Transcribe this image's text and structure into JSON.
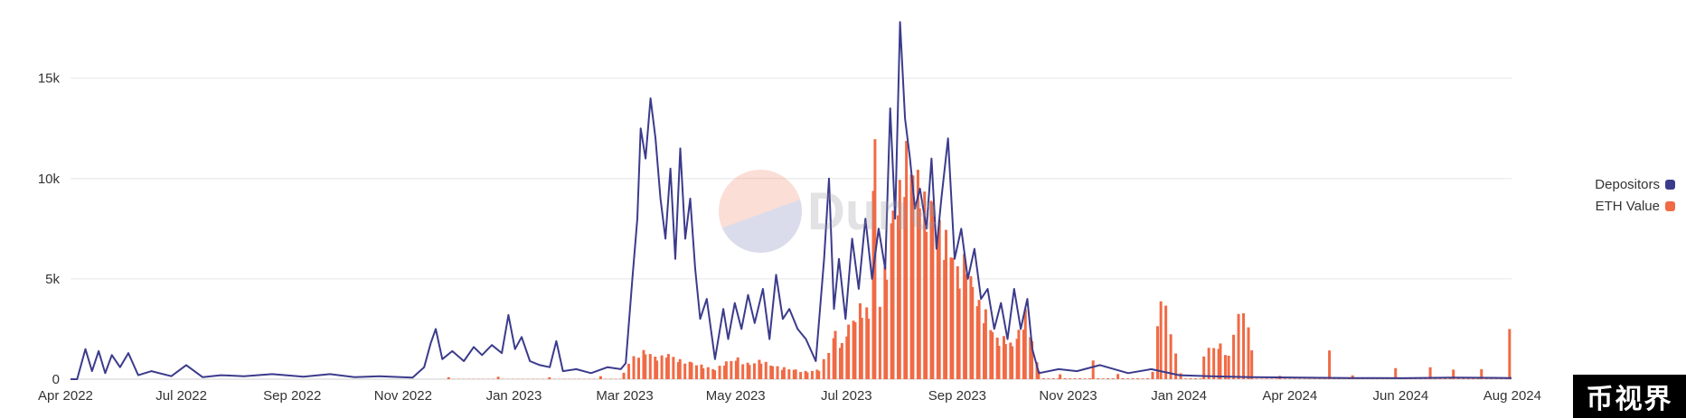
{
  "chart_data": {
    "type": "line",
    "title": "",
    "xlabel": "",
    "ylabel": "",
    "x_ticks": [
      "Apr 2022",
      "Jul 2022",
      "Sep 2022",
      "Nov 2022",
      "Jan 2023",
      "Mar 2023",
      "May 2023",
      "Jul 2023",
      "Sep 2023",
      "Nov 2023",
      "Jan 2024",
      "Apr 2024",
      "Jun 2024",
      "Aug 2024"
    ],
    "y_ticks": [
      {
        "value": 0,
        "label": "0"
      },
      {
        "value": 5000,
        "label": "5k"
      },
      {
        "value": 10000,
        "label": "10k"
      },
      {
        "value": 15000,
        "label": "15k"
      }
    ],
    "ylim": [
      0,
      18000
    ],
    "xlim": [
      "2022-04-01",
      "2024-08-20"
    ],
    "grid": "horizontal",
    "legend_position": "right",
    "series": [
      {
        "name": "Depositors",
        "type": "line",
        "color": "#3b3b8c",
        "points": [
          [
            "2022-04-01",
            0
          ],
          [
            "2022-04-05",
            0
          ],
          [
            "2022-04-10",
            1500
          ],
          [
            "2022-04-14",
            400
          ],
          [
            "2022-04-18",
            1400
          ],
          [
            "2022-04-22",
            300
          ],
          [
            "2022-04-26",
            1200
          ],
          [
            "2022-05-01",
            600
          ],
          [
            "2022-05-06",
            1300
          ],
          [
            "2022-05-12",
            200
          ],
          [
            "2022-05-20",
            400
          ],
          [
            "2022-06-01",
            150
          ],
          [
            "2022-06-10",
            700
          ],
          [
            "2022-06-20",
            100
          ],
          [
            "2022-07-01",
            200
          ],
          [
            "2022-07-15",
            150
          ],
          [
            "2022-08-01",
            250
          ],
          [
            "2022-08-20",
            120
          ],
          [
            "2022-09-05",
            250
          ],
          [
            "2022-09-20",
            100
          ],
          [
            "2022-10-05",
            150
          ],
          [
            "2022-10-25",
            80
          ],
          [
            "2022-11-01",
            600
          ],
          [
            "2022-11-05",
            1800
          ],
          [
            "2022-11-08",
            2500
          ],
          [
            "2022-11-12",
            1000
          ],
          [
            "2022-11-18",
            1400
          ],
          [
            "2022-11-25",
            900
          ],
          [
            "2022-12-01",
            1600
          ],
          [
            "2022-12-06",
            1200
          ],
          [
            "2022-12-12",
            1700
          ],
          [
            "2022-12-18",
            1300
          ],
          [
            "2022-12-22",
            3200
          ],
          [
            "2022-12-26",
            1500
          ],
          [
            "2022-12-30",
            2100
          ],
          [
            "2023-01-04",
            900
          ],
          [
            "2023-01-10",
            700
          ],
          [
            "2023-01-16",
            600
          ],
          [
            "2023-01-20",
            1900
          ],
          [
            "2023-01-24",
            400
          ],
          [
            "2023-02-01",
            500
          ],
          [
            "2023-02-10",
            300
          ],
          [
            "2023-02-20",
            600
          ],
          [
            "2023-02-28",
            500
          ],
          [
            "2023-03-03",
            800
          ],
          [
            "2023-03-07",
            5000
          ],
          [
            "2023-03-10",
            8000
          ],
          [
            "2023-03-12",
            12500
          ],
          [
            "2023-03-15",
            11000
          ],
          [
            "2023-03-18",
            14000
          ],
          [
            "2023-03-21",
            12000
          ],
          [
            "2023-03-24",
            9000
          ],
          [
            "2023-03-27",
            7000
          ],
          [
            "2023-03-30",
            10500
          ],
          [
            "2023-04-02",
            6000
          ],
          [
            "2023-04-05",
            11500
          ],
          [
            "2023-04-08",
            7000
          ],
          [
            "2023-04-11",
            9000
          ],
          [
            "2023-04-14",
            5500
          ],
          [
            "2023-04-17",
            3000
          ],
          [
            "2023-04-21",
            4000
          ],
          [
            "2023-04-26",
            1000
          ],
          [
            "2023-05-01",
            3500
          ],
          [
            "2023-05-04",
            2000
          ],
          [
            "2023-05-08",
            3800
          ],
          [
            "2023-05-12",
            2500
          ],
          [
            "2023-05-16",
            4200
          ],
          [
            "2023-05-20",
            2800
          ],
          [
            "2023-05-25",
            4500
          ],
          [
            "2023-05-29",
            2000
          ],
          [
            "2023-06-02",
            5200
          ],
          [
            "2023-06-06",
            3000
          ],
          [
            "2023-06-10",
            3500
          ],
          [
            "2023-06-15",
            2500
          ],
          [
            "2023-06-20",
            2000
          ],
          [
            "2023-06-26",
            900
          ],
          [
            "2023-07-01",
            6000
          ],
          [
            "2023-07-04",
            10000
          ],
          [
            "2023-07-07",
            3500
          ],
          [
            "2023-07-10",
            6000
          ],
          [
            "2023-07-14",
            3000
          ],
          [
            "2023-07-18",
            7000
          ],
          [
            "2023-07-22",
            4500
          ],
          [
            "2023-07-26",
            8000
          ],
          [
            "2023-07-30",
            5000
          ],
          [
            "2023-08-03",
            7500
          ],
          [
            "2023-08-07",
            5500
          ],
          [
            "2023-08-10",
            13500
          ],
          [
            "2023-08-13",
            8000
          ],
          [
            "2023-08-16",
            17800
          ],
          [
            "2023-08-19",
            13000
          ],
          [
            "2023-08-22",
            11000
          ],
          [
            "2023-08-25",
            8500
          ],
          [
            "2023-08-28",
            9500
          ],
          [
            "2023-09-01",
            7500
          ],
          [
            "2023-09-04",
            11000
          ],
          [
            "2023-09-07",
            6500
          ],
          [
            "2023-09-10",
            9000
          ],
          [
            "2023-09-14",
            12000
          ],
          [
            "2023-09-18",
            6000
          ],
          [
            "2023-09-22",
            7500
          ],
          [
            "2023-09-26",
            5000
          ],
          [
            "2023-09-30",
            6500
          ],
          [
            "2023-10-04",
            4000
          ],
          [
            "2023-10-08",
            4500
          ],
          [
            "2023-10-12",
            2500
          ],
          [
            "2023-10-16",
            3800
          ],
          [
            "2023-10-20",
            2000
          ],
          [
            "2023-10-24",
            4500
          ],
          [
            "2023-10-28",
            2500
          ],
          [
            "2023-11-01",
            4000
          ],
          [
            "2023-11-04",
            1500
          ],
          [
            "2023-11-08",
            300
          ],
          [
            "2023-11-20",
            500
          ],
          [
            "2023-12-01",
            400
          ],
          [
            "2023-12-15",
            700
          ],
          [
            "2024-01-01",
            300
          ],
          [
            "2024-01-15",
            500
          ],
          [
            "2024-02-01",
            200
          ],
          [
            "2024-02-20",
            150
          ],
          [
            "2024-03-15",
            100
          ],
          [
            "2024-04-15",
            80
          ],
          [
            "2024-05-15",
            60
          ],
          [
            "2024-06-15",
            50
          ],
          [
            "2024-07-15",
            80
          ],
          [
            "2024-08-20",
            60
          ]
        ]
      },
      {
        "name": "ETH Value",
        "type": "bar",
        "color": "#f06a45",
        "points": [
          [
            "2022-10-20",
            0
          ],
          [
            "2022-11-15",
            100
          ],
          [
            "2022-12-15",
            150
          ],
          [
            "2023-01-15",
            100
          ],
          [
            "2023-02-15",
            150
          ],
          [
            "2023-03-01",
            400
          ],
          [
            "2023-03-07",
            1200
          ],
          [
            "2023-03-14",
            1500
          ],
          [
            "2023-03-21",
            1100
          ],
          [
            "2023-03-28",
            1300
          ],
          [
            "2023-04-04",
            1000
          ],
          [
            "2023-04-11",
            900
          ],
          [
            "2023-04-18",
            700
          ],
          [
            "2023-04-25",
            500
          ],
          [
            "2023-05-02",
            900
          ],
          [
            "2023-05-09",
            1100
          ],
          [
            "2023-05-16",
            800
          ],
          [
            "2023-05-23",
            1000
          ],
          [
            "2023-05-30",
            700
          ],
          [
            "2023-06-06",
            600
          ],
          [
            "2023-06-13",
            500
          ],
          [
            "2023-06-20",
            400
          ],
          [
            "2023-06-27",
            500
          ],
          [
            "2023-07-03",
            1500
          ],
          [
            "2023-07-07",
            2500
          ],
          [
            "2023-07-11",
            1800
          ],
          [
            "2023-07-15",
            2800
          ],
          [
            "2023-07-19",
            3200
          ],
          [
            "2023-07-23",
            4000
          ],
          [
            "2023-07-27",
            3500
          ],
          [
            "2023-07-31",
            12500
          ],
          [
            "2023-08-03",
            4500
          ],
          [
            "2023-08-07",
            6000
          ],
          [
            "2023-08-11",
            9000
          ],
          [
            "2023-08-15",
            10000
          ],
          [
            "2023-08-19",
            12000
          ],
          [
            "2023-08-23",
            11000
          ],
          [
            "2023-08-27",
            10500
          ],
          [
            "2023-08-31",
            9000
          ],
          [
            "2023-09-04",
            9500
          ],
          [
            "2023-09-08",
            8000
          ],
          [
            "2023-09-12",
            7500
          ],
          [
            "2023-09-16",
            6500
          ],
          [
            "2023-09-20",
            5500
          ],
          [
            "2023-09-24",
            6500
          ],
          [
            "2023-09-28",
            5000
          ],
          [
            "2023-10-02",
            4000
          ],
          [
            "2023-10-06",
            3500
          ],
          [
            "2023-10-10",
            2500
          ],
          [
            "2023-10-14",
            2000
          ],
          [
            "2023-10-18",
            2200
          ],
          [
            "2023-10-22",
            1800
          ],
          [
            "2023-10-26",
            2500
          ],
          [
            "2023-10-30",
            3500
          ],
          [
            "2023-11-03",
            2000
          ],
          [
            "2023-11-07",
            500
          ],
          [
            "2023-11-20",
            300
          ],
          [
            "2023-12-10",
            1000
          ],
          [
            "2023-12-25",
            300
          ],
          [
            "2024-01-15",
            400
          ],
          [
            "2024-01-20",
            4800
          ],
          [
            "2024-02-01",
            300
          ],
          [
            "2024-02-15",
            1500
          ],
          [
            "2024-02-25",
            1800
          ],
          [
            "2024-03-01",
            1400
          ],
          [
            "2024-03-10",
            4300
          ],
          [
            "2024-03-15",
            1500
          ],
          [
            "2024-04-01",
            200
          ],
          [
            "2024-05-01",
            1700
          ],
          [
            "2024-05-15",
            200
          ],
          [
            "2024-06-10",
            600
          ],
          [
            "2024-07-01",
            700
          ],
          [
            "2024-07-15",
            500
          ],
          [
            "2024-08-01",
            600
          ],
          [
            "2024-08-18",
            2500
          ]
        ]
      }
    ]
  },
  "legend": {
    "items": [
      {
        "label": "Depositors",
        "color": "#3b3b8c"
      },
      {
        "label": "ETH Value",
        "color": "#f06a45"
      }
    ]
  },
  "watermark": {
    "text": "Dune"
  },
  "badge": {
    "text": "币视界"
  }
}
